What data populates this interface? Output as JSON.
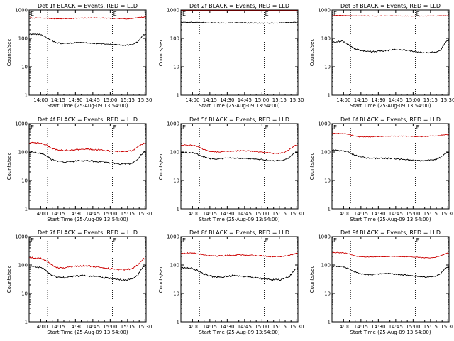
{
  "figure": {
    "background": "#ffffff",
    "colors": {
      "events": "#000000",
      "lld": "#cc0000",
      "axis": "#000000"
    }
  },
  "chart_data": [
    {
      "type": "line",
      "title": "Det 1f BLACK = Events, RED = LLD",
      "xlabel": "Start Time (25-Aug-09 13:54:00)",
      "ylabel": "Counts/sec",
      "x_ticks": [
        "14:00",
        "14:15",
        "14:30",
        "14:45",
        "15:00",
        "15:15",
        "15:30"
      ],
      "y_ticks": [
        "1",
        "10",
        "100",
        "1000"
      ],
      "ylim": [
        1,
        1000
      ],
      "y_scale": "log",
      "xlim_minutes": [
        -4,
        97
      ],
      "markers": [
        {
          "label": "E",
          "minutes": 68
        }
      ],
      "x": [
        -2,
        5,
        10,
        15,
        20,
        25,
        30,
        35,
        40,
        45,
        50,
        55,
        60,
        65,
        70,
        75,
        80,
        85,
        90,
        95
      ],
      "series": [
        {
          "color": "#cc0000",
          "noise": 0.03,
          "values": [
            520,
            520,
            510,
            500,
            490,
            495,
            500,
            505,
            510,
            520,
            525,
            525,
            520,
            510,
            500,
            490,
            490,
            500,
            540,
            560
          ]
        },
        {
          "color": "#000000",
          "noise": 0.04,
          "values": [
            140,
            140,
            110,
            85,
            70,
            65,
            68,
            70,
            72,
            70,
            68,
            66,
            64,
            62,
            60,
            58,
            58,
            60,
            75,
            135
          ]
        }
      ]
    },
    {
      "type": "line",
      "title": "Det 2f BLACK = Events, RED = LLD",
      "xlabel": "Start Time (25-Aug-09 13:54:00)",
      "ylabel": "Counts/sec",
      "x_ticks": [
        "14:00",
        "14:15",
        "14:30",
        "14:45",
        "15:00",
        "15:15",
        "15:30"
      ],
      "y_ticks": [
        "1",
        "10",
        "100",
        "1000"
      ],
      "ylim": [
        1,
        1000
      ],
      "y_scale": "log",
      "xlim_minutes": [
        -4,
        97
      ],
      "markers": [
        {
          "label": "E",
          "minutes": 68
        }
      ],
      "x": [
        -2,
        5,
        10,
        15,
        20,
        25,
        30,
        35,
        40,
        45,
        50,
        55,
        60,
        65,
        70,
        75,
        80,
        85,
        90,
        95
      ],
      "series": [
        {
          "color": "#cc0000",
          "noise": 0.02,
          "values": [
            1050,
            1050,
            1040,
            1040,
            1030,
            1030,
            1030,
            1030,
            1040,
            1040,
            1030,
            1030,
            1030,
            1030,
            1030,
            1030,
            1040,
            1040,
            1050,
            1060
          ]
        },
        {
          "color": "#000000",
          "noise": 0.03,
          "values": [
            370,
            370,
            360,
            360,
            355,
            355,
            350,
            350,
            350,
            355,
            355,
            350,
            350,
            345,
            345,
            345,
            350,
            355,
            360,
            365
          ]
        }
      ]
    },
    {
      "type": "line",
      "title": "Det 3f BLACK = Events, RED = LLD",
      "xlabel": "Start Time (25-Aug-09 13:54:00)",
      "ylabel": "Counts/sec",
      "x_ticks": [
        "14:00",
        "14:15",
        "14:30",
        "14:45",
        "15:00",
        "15:15",
        "15:30"
      ],
      "y_ticks": [
        "1",
        "10",
        "100",
        "1000"
      ],
      "ylim": [
        1,
        1000
      ],
      "y_scale": "log",
      "xlim_minutes": [
        -4,
        97
      ],
      "markers": [
        {
          "label": "E",
          "minutes": 68
        }
      ],
      "x": [
        -2,
        5,
        10,
        15,
        20,
        25,
        30,
        35,
        40,
        45,
        50,
        55,
        60,
        65,
        70,
        75,
        80,
        85,
        90,
        95
      ],
      "series": [
        {
          "color": "#cc0000",
          "noise": 0.02,
          "values": [
            640,
            640,
            630,
            625,
            620,
            620,
            615,
            615,
            620,
            620,
            625,
            620,
            615,
            610,
            610,
            610,
            615,
            620,
            625,
            630
          ]
        },
        {
          "color": "#000000",
          "noise": 0.05,
          "values": [
            75,
            80,
            60,
            45,
            38,
            35,
            34,
            35,
            36,
            38,
            40,
            40,
            38,
            35,
            33,
            32,
            32,
            33,
            38,
            80
          ]
        }
      ]
    },
    {
      "type": "line",
      "title": "Det 4f BLACK = Events, RED = LLD",
      "xlabel": "Start Time (25-Aug-09 13:54:00)",
      "ylabel": "Counts/sec",
      "x_ticks": [
        "14:00",
        "14:15",
        "14:30",
        "14:45",
        "15:00",
        "15:15",
        "15:30"
      ],
      "y_ticks": [
        "1",
        "10",
        "100",
        "1000"
      ],
      "ylim": [
        1,
        1000
      ],
      "y_scale": "log",
      "xlim_minutes": [
        -4,
        97
      ],
      "markers": [
        {
          "label": "E",
          "minutes": 68
        }
      ],
      "x": [
        -2,
        5,
        10,
        15,
        20,
        25,
        30,
        35,
        40,
        45,
        50,
        55,
        60,
        65,
        70,
        75,
        80,
        85,
        90,
        95
      ],
      "series": [
        {
          "color": "#cc0000",
          "noise": 0.05,
          "values": [
            210,
            210,
            180,
            140,
            120,
            115,
            115,
            120,
            125,
            125,
            125,
            120,
            115,
            110,
            105,
            105,
            105,
            110,
            150,
            200
          ]
        },
        {
          "color": "#000000",
          "noise": 0.06,
          "values": [
            100,
            95,
            75,
            55,
            48,
            45,
            45,
            48,
            50,
            50,
            48,
            46,
            45,
            42,
            40,
            38,
            38,
            40,
            55,
            100
          ]
        }
      ]
    },
    {
      "type": "line",
      "title": "Det 5f BLACK = Events, RED = LLD",
      "xlabel": "Start Time (25-Aug-09 13:54:00)",
      "ylabel": "Counts/sec",
      "x_ticks": [
        "14:00",
        "14:15",
        "14:30",
        "14:45",
        "15:00",
        "15:15",
        "15:30"
      ],
      "y_ticks": [
        "1",
        "10",
        "100",
        "1000"
      ],
      "ylim": [
        1,
        1000
      ],
      "y_scale": "log",
      "xlim_minutes": [
        -4,
        97
      ],
      "markers": [
        {
          "label": "E",
          "minutes": 68
        }
      ],
      "x": [
        -2,
        5,
        10,
        15,
        20,
        25,
        30,
        35,
        40,
        45,
        50,
        55,
        60,
        65,
        70,
        75,
        80,
        85,
        90,
        95
      ],
      "series": [
        {
          "color": "#cc0000",
          "noise": 0.04,
          "values": [
            175,
            175,
            160,
            125,
            105,
            100,
            102,
            105,
            108,
            110,
            110,
            108,
            105,
            100,
            95,
            90,
            90,
            95,
            125,
            170
          ]
        },
        {
          "color": "#000000",
          "noise": 0.05,
          "values": [
            95,
            95,
            85,
            70,
            60,
            57,
            58,
            60,
            62,
            62,
            60,
            58,
            57,
            55,
            52,
            50,
            50,
            52,
            65,
            95
          ]
        }
      ]
    },
    {
      "type": "line",
      "title": "Det 6f BLACK = Events, RED = LLD",
      "xlabel": "Start Time (25-Aug-09 13:54:00)",
      "ylabel": "Counts/sec",
      "x_ticks": [
        "14:00",
        "14:15",
        "14:30",
        "14:45",
        "15:00",
        "15:15",
        "15:30"
      ],
      "y_ticks": [
        "1",
        "10",
        "100",
        "1000"
      ],
      "ylim": [
        1,
        1000
      ],
      "y_scale": "log",
      "xlim_minutes": [
        -4,
        97
      ],
      "markers": [
        {
          "label": "E",
          "minutes": 68
        }
      ],
      "x": [
        -2,
        5,
        10,
        15,
        20,
        25,
        30,
        35,
        40,
        45,
        50,
        55,
        60,
        65,
        70,
        75,
        80,
        85,
        90,
        95
      ],
      "series": [
        {
          "color": "#cc0000",
          "noise": 0.03,
          "values": [
            450,
            450,
            420,
            370,
            345,
            340,
            345,
            350,
            355,
            360,
            365,
            365,
            360,
            355,
            350,
            350,
            360,
            370,
            390,
            410
          ]
        },
        {
          "color": "#000000",
          "noise": 0.05,
          "values": [
            115,
            110,
            100,
            80,
            70,
            62,
            60,
            60,
            60,
            60,
            58,
            56,
            55,
            52,
            50,
            50,
            52,
            55,
            65,
            95
          ]
        }
      ]
    },
    {
      "type": "line",
      "title": "Det 7f BLACK = Events, RED = LLD",
      "xlabel": "Start Time (25-Aug-09 13:54:00)",
      "ylabel": "Counts/sec",
      "x_ticks": [
        "14:00",
        "14:15",
        "14:30",
        "14:45",
        "15:00",
        "15:15",
        "15:30"
      ],
      "y_ticks": [
        "1",
        "10",
        "100",
        "1000"
      ],
      "ylim": [
        1,
        1000
      ],
      "y_scale": "log",
      "xlim_minutes": [
        -4,
        97
      ],
      "markers": [
        {
          "label": "E",
          "minutes": 68
        }
      ],
      "x": [
        -2,
        5,
        10,
        15,
        20,
        25,
        30,
        35,
        40,
        45,
        50,
        55,
        60,
        65,
        70,
        75,
        80,
        85,
        90,
        95
      ],
      "series": [
        {
          "color": "#cc0000",
          "noise": 0.06,
          "values": [
            180,
            175,
            150,
            105,
            82,
            78,
            82,
            88,
            92,
            92,
            90,
            85,
            80,
            75,
            72,
            70,
            70,
            75,
            100,
            170
          ]
        },
        {
          "color": "#000000",
          "noise": 0.07,
          "values": [
            90,
            85,
            65,
            45,
            38,
            36,
            38,
            40,
            42,
            42,
            40,
            38,
            36,
            34,
            32,
            30,
            30,
            32,
            45,
            90
          ]
        }
      ]
    },
    {
      "type": "line",
      "title": "Det 8f BLACK = Events, RED = LLD",
      "xlabel": "Start Time (25-Aug-09 13:54:00)",
      "ylabel": "Counts/sec",
      "x_ticks": [
        "14:00",
        "14:15",
        "14:30",
        "14:45",
        "15:00",
        "15:15",
        "15:30"
      ],
      "y_ticks": [
        "1",
        "10",
        "100",
        "1000"
      ],
      "ylim": [
        1,
        1000
      ],
      "y_scale": "log",
      "xlim_minutes": [
        -4,
        97
      ],
      "markers": [
        {
          "label": "E",
          "minutes": 68
        }
      ],
      "x": [
        -2,
        5,
        10,
        15,
        20,
        25,
        30,
        35,
        40,
        45,
        50,
        55,
        60,
        65,
        70,
        75,
        80,
        85,
        90,
        95
      ],
      "series": [
        {
          "color": "#cc0000",
          "noise": 0.05,
          "values": [
            260,
            260,
            250,
            230,
            215,
            210,
            210,
            215,
            220,
            225,
            225,
            220,
            215,
            210,
            205,
            200,
            200,
            205,
            220,
            250
          ]
        },
        {
          "color": "#000000",
          "noise": 0.07,
          "values": [
            80,
            78,
            65,
            50,
            42,
            38,
            38,
            40,
            42,
            42,
            40,
            38,
            36,
            34,
            32,
            30,
            30,
            32,
            40,
            75
          ]
        }
      ]
    },
    {
      "type": "line",
      "title": "Det 9f BLACK = Events, RED = LLD",
      "xlabel": "Start Time (25-Aug-09 13:54:00)",
      "ylabel": "Counts/sec",
      "x_ticks": [
        "14:00",
        "14:15",
        "14:30",
        "14:45",
        "15:00",
        "15:15",
        "15:30"
      ],
      "y_ticks": [
        "1",
        "10",
        "100",
        "1000"
      ],
      "ylim": [
        1,
        1000
      ],
      "y_scale": "log",
      "xlim_minutes": [
        -4,
        97
      ],
      "markers": [
        {
          "label": "E",
          "minutes": 68
        }
      ],
      "x": [
        -2,
        5,
        10,
        15,
        20,
        25,
        30,
        35,
        40,
        45,
        50,
        55,
        60,
        65,
        70,
        75,
        80,
        85,
        90,
        95
      ],
      "series": [
        {
          "color": "#cc0000",
          "noise": 0.03,
          "values": [
            270,
            270,
            250,
            215,
            195,
            190,
            192,
            195,
            198,
            200,
            200,
            198,
            195,
            190,
            185,
            180,
            180,
            185,
            210,
            260
          ]
        },
        {
          "color": "#000000",
          "noise": 0.04,
          "values": [
            90,
            88,
            75,
            58,
            50,
            46,
            46,
            48,
            50,
            50,
            48,
            46,
            44,
            42,
            40,
            38,
            38,
            40,
            50,
            85
          ]
        }
      ]
    }
  ]
}
